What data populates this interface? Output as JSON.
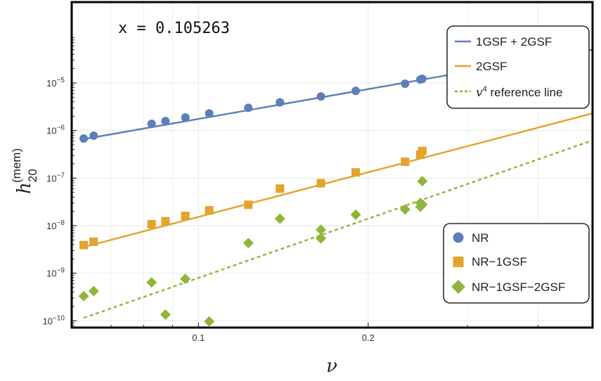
{
  "chart_data": {
    "type": "scatter",
    "xscale": "log",
    "yscale": "log",
    "xlim": [
      0.0596,
      0.5
    ],
    "ylim": [
      7.2e-11,
      0.0005
    ],
    "xlabel": "ν",
    "ylabel": "h",
    "ylabel_sub": "20",
    "ylabel_sup": "(mem)",
    "annotation": "x = 0.105263",
    "x_ticks": [
      {
        "value": 0.1,
        "label": "0.1"
      },
      {
        "value": 0.2,
        "label": "0.2"
      }
    ],
    "y_ticks": [
      {
        "value": 1e-10,
        "base": "10",
        "exp": "−10"
      },
      {
        "value": 1e-09,
        "base": "10",
        "exp": "−9"
      },
      {
        "value": 1e-08,
        "base": "10",
        "exp": "−8"
      },
      {
        "value": 1e-07,
        "base": "10",
        "exp": "−7"
      },
      {
        "value": 1e-06,
        "base": "10",
        "exp": "−6"
      },
      {
        "value": 1e-05,
        "base": "10",
        "exp": "−5"
      }
    ],
    "grid": true,
    "legend_top": {
      "placement": "top-right",
      "entries": [
        {
          "label": "1GSF + 2GSF",
          "color": "#5b7fb8",
          "style": "solid"
        },
        {
          "label": "2GSF",
          "color": "#e3a32c",
          "style": "solid"
        },
        {
          "label_italic": "v",
          "label_sup": "4",
          "label_rest": " reference line",
          "color": "#8fb53a",
          "style": "dashed"
        }
      ]
    },
    "legend_bottom": {
      "placement": "bottom-right",
      "entries": [
        {
          "label": "NR",
          "color": "#5b7fb8",
          "marker": "circle"
        },
        {
          "label": "NR−1GSF",
          "color": "#e3a32c",
          "marker": "square"
        },
        {
          "label": "NR−1GSF−2GSF",
          "color": "#8fb53a",
          "marker": "diamond"
        }
      ]
    },
    "lines": [
      {
        "name": "1GSF + 2GSF",
        "color": "#5b7fb8",
        "style": "solid",
        "x": [
          0.0626,
          0.5
        ],
        "y": [
          6.6e-07,
          5e-05
        ]
      },
      {
        "name": "2GSF",
        "color": "#e3a32c",
        "style": "solid",
        "x": [
          0.0626,
          0.5
        ],
        "y": [
          3.55e-09,
          2.3e-06
        ]
      },
      {
        "name": "v4 reference line",
        "color": "#8fb53a",
        "style": "dashed",
        "x": [
          0.0626,
          0.5
        ],
        "y": [
          1.15e-10,
          6.2e-07
        ]
      }
    ],
    "series": [
      {
        "name": "NR",
        "color": "#5b7fb8",
        "marker": "circle",
        "x": [
          0.0626,
          0.0652,
          0.0826,
          0.0874,
          0.0948,
          0.1045,
          0.1226,
          0.1395,
          0.1649,
          0.1901,
          0.2325,
          0.2475,
          0.2495
        ],
        "y": [
          6.8e-07,
          7.8e-07,
          1.38e-06,
          1.58e-06,
          1.88e-06,
          2.28e-06,
          3e-06,
          3.9e-06,
          5.2e-06,
          6.8e-06,
          9.6e-06,
          1.18e-05,
          1.22e-05
        ]
      },
      {
        "name": "NR−1GSF",
        "color": "#e3a32c",
        "marker": "square",
        "x": [
          0.0626,
          0.0652,
          0.0826,
          0.0874,
          0.0948,
          0.1045,
          0.1226,
          0.1395,
          0.1649,
          0.1901,
          0.2325,
          0.2475,
          0.2495
        ],
        "y": [
          3.9e-09,
          4.6e-09,
          1.07e-08,
          1.24e-08,
          1.6e-08,
          2.1e-08,
          2.75e-08,
          6e-08,
          7.8e-08,
          1.32e-07,
          2.2e-07,
          3.1e-07,
          3.7e-07
        ]
      },
      {
        "name": "NR−1GSF−2GSF",
        "color": "#8fb53a",
        "marker": "diamond",
        "x": [
          0.0626,
          0.0652,
          0.0826,
          0.0874,
          0.0948,
          0.1045,
          0.1226,
          0.1395,
          0.1649,
          0.1649,
          0.1901,
          0.2325,
          0.2475,
          0.2475,
          0.2495,
          0.2495
        ],
        "y": [
          3.3e-10,
          4.2e-10,
          6.4e-10,
          1.35e-10,
          7.6e-10,
          9.7e-11,
          4.3e-09,
          1.4e-08,
          8.2e-09,
          5.4e-09,
          1.7e-08,
          2.2e-08,
          3e-08,
          2.5e-08,
          2.8e-08,
          8.6e-08
        ]
      }
    ]
  }
}
